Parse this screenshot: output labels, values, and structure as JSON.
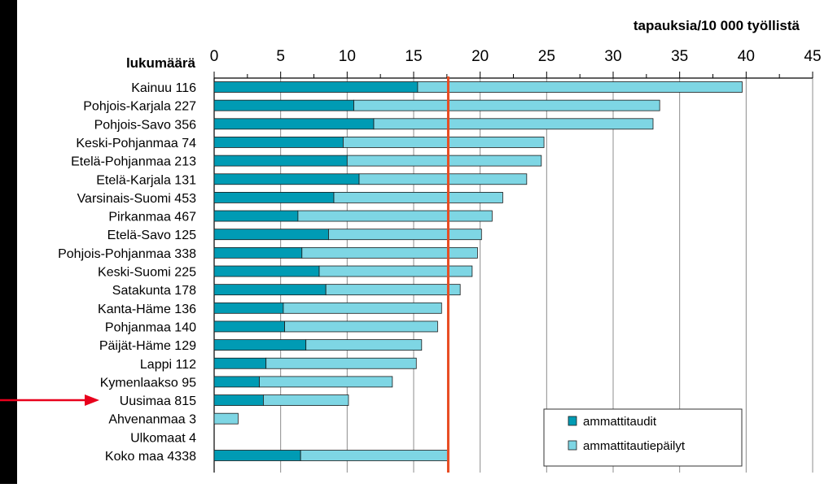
{
  "chart_data": {
    "type": "bar",
    "stacked": true,
    "orientation": "horizontal",
    "title": "",
    "xlabel": "tapauksia/10 000 työllistä",
    "ylabel": "lukumäärä",
    "xlim": [
      0,
      45
    ],
    "xticks": [
      0,
      5,
      10,
      15,
      20,
      25,
      30,
      35,
      40,
      45
    ],
    "grid": true,
    "categories": [
      "Kainuu 116",
      "Pohjois-Karjala 227",
      "Pohjois-Savo 356",
      "Keski-Pohjanmaa 74",
      "Etelä-Pohjanmaa 213",
      "Etelä-Karjala 131",
      "Varsinais-Suomi 453",
      "Pirkanmaa 467",
      "Etelä-Savo 125",
      "Pohjois-Pohjanmaa 338",
      "Keski-Suomi 225",
      "Satakunta 178",
      "Kanta-Häme 136",
      "Pohjanmaa 140",
      "Päijät-Häme 129",
      "Lappi 112",
      "Kymenlaakso 95",
      "Uusimaa 815",
      "Ahvenanmaa 3",
      "Ulkomaat 4",
      "Koko maa 4338"
    ],
    "series": [
      {
        "name": "ammattitaudit",
        "color": "#009bb4",
        "values": [
          15.3,
          10.5,
          12.0,
          9.7,
          10.0,
          10.9,
          9.0,
          6.3,
          8.6,
          6.6,
          7.9,
          8.4,
          5.2,
          5.3,
          6.9,
          3.9,
          3.4,
          3.7,
          0,
          0,
          6.5
        ]
      },
      {
        "name": "ammattitautiepäilyt",
        "color": "#7ed6e4",
        "values": [
          24.4,
          23.0,
          21.0,
          15.1,
          14.6,
          12.6,
          12.7,
          14.6,
          11.5,
          13.2,
          11.5,
          10.1,
          11.9,
          11.5,
          8.7,
          11.3,
          10.0,
          6.4,
          1.8,
          0,
          11.1
        ]
      }
    ],
    "reference_line": {
      "value": 17.6,
      "color": "#e84c22",
      "label": "Koko maa"
    },
    "highlighted_category": "Uusimaa 815",
    "arrow_color": "#e8001c",
    "legend_position": "bottom-right"
  }
}
